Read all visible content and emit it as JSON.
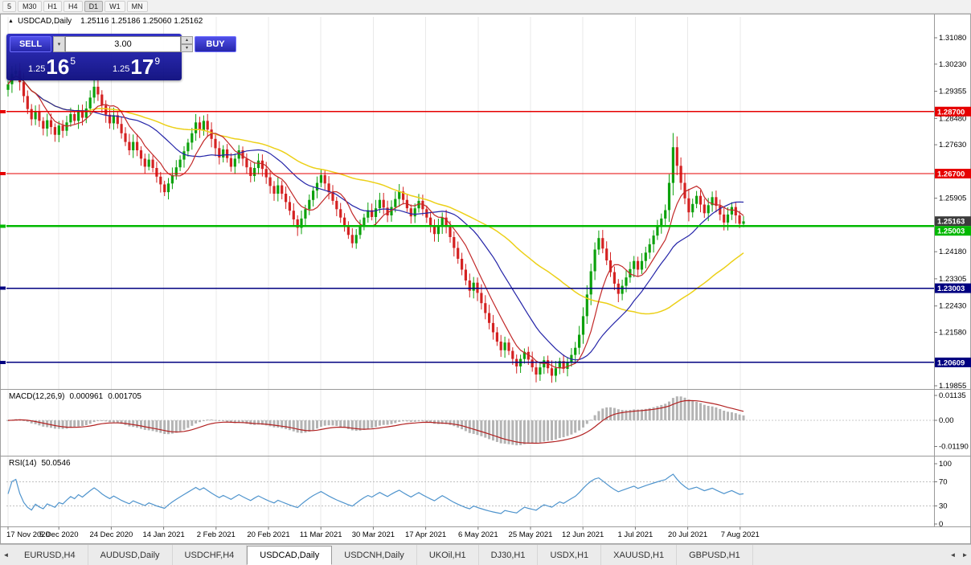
{
  "toolbar": {
    "timeframes": [
      "5",
      "M30",
      "H1",
      "H4",
      "D1",
      "W1",
      "MN"
    ],
    "active": "D1"
  },
  "chart": {
    "collapse_icon": "▲",
    "title_symbol": "USDCAD,Daily",
    "title_ohlc": "1.25116 1.25186 1.25060 1.25162"
  },
  "one_click": {
    "sell_label": "SELL",
    "buy_label": "BUY",
    "volume": "3.00",
    "dropdown_icon": "▾",
    "step_up_icon": "▴",
    "step_down_icon": "▾",
    "sell_price": {
      "prefix": "1.25",
      "big": "16",
      "sup": "5"
    },
    "buy_price": {
      "prefix": "1.25",
      "big": "17",
      "sup": "9"
    }
  },
  "tabs": {
    "items": [
      "EURUSD,H4",
      "AUDUSD,Daily",
      "USDCHF,H4",
      "USDCAD,Daily",
      "USDCNH,Daily",
      "UKOil,H1",
      "DJ30,H1",
      "USDX,H1",
      "XAUUSD,H1",
      "GBPUSD,H1"
    ],
    "active_index": 3,
    "left_arrow": "◄",
    "right_arrow": "►"
  },
  "chart_data": {
    "type": "candlestick",
    "symbol": "USDCAD",
    "timeframe": "Daily",
    "open": "1.25116",
    "high": "1.25186",
    "low": "1.25060",
    "close": "1.25162",
    "up_color": "#0ca10c",
    "down_color": "#d42222",
    "y_axis_ticks": [
      "1.31080",
      "1.30230",
      "1.29355",
      "1.28480",
      "1.27630",
      "1.25905",
      "1.24180",
      "1.23305",
      "1.22430",
      "1.21580",
      "1.19855"
    ],
    "x_axis_dates": [
      "17 Nov 2020",
      "5 Dec 2020",
      "24 Dec 2020",
      "14 Jan 2021",
      "2 Feb 2021",
      "20 Feb 2021",
      "11 Mar 2021",
      "30 Mar 2021",
      "17 Apr 2021",
      "6 May 2021",
      "25 May 2021",
      "12 Jun 2021",
      "1 Jul 2021",
      "20 Jul 2021",
      "7 Aug 2021"
    ],
    "levels": [
      {
        "label": "1.28700",
        "price": 1.287,
        "color": "#e60000",
        "width": 1.3
      },
      {
        "label": "1.26700",
        "price": 1.267,
        "color": "#e60000",
        "width": 1.3
      },
      {
        "label": "1.25163",
        "price": 1.25163,
        "color": "#3c3c3c",
        "width": 0
      },
      {
        "label": "1.25003",
        "price": 1.25003,
        "color": "#00b800",
        "width": 2.4
      },
      {
        "label": "1.23003",
        "price": 1.23003,
        "color": "#000080",
        "width": 1.6
      },
      {
        "label": "1.20609",
        "price": 1.20609,
        "color": "#000080",
        "width": 1.6
      }
    ],
    "indicators": {
      "ma_fast": {
        "period": 8,
        "color": "#c22828"
      },
      "ma_mid": {
        "period": 21,
        "color": "#2424a8"
      },
      "ma_slow": {
        "period": 50,
        "color": "#ecd018"
      },
      "macd": {
        "display_name": "MACD(12,26,9)",
        "value": "0.000961",
        "signal_value": "0.001705",
        "fast": 12,
        "slow": 26,
        "signal": 9,
        "axis_labels": [
          "0.01135",
          "0.00",
          "-0.01190"
        ],
        "histogram_color": "#b4b4b4",
        "signal_color": "#b22222"
      },
      "rsi": {
        "display_name": "RSI(14)",
        "value": "50.0546",
        "period": 14,
        "axis_labels": [
          100,
          70,
          30,
          0
        ],
        "levels": [
          70,
          30
        ],
        "color": "#4f94cd"
      }
    },
    "first_open": 1.294,
    "closes": [
      1.2958,
      1.2992,
      1.3002,
      1.2965,
      1.292,
      1.2878,
      1.2845,
      1.2872,
      1.284,
      1.2815,
      1.2842,
      1.282,
      1.2795,
      1.2825,
      1.2808,
      1.2835,
      1.2862,
      1.284,
      1.2875,
      1.285,
      1.288,
      1.2915,
      1.295,
      1.2925,
      1.289,
      1.286,
      1.2832,
      1.2858,
      1.283,
      1.28,
      1.2772,
      1.2745,
      1.2772,
      1.2745,
      1.2718,
      1.2692,
      1.2715,
      1.2688,
      1.266,
      1.2635,
      1.261,
      1.2638,
      1.2665,
      1.269,
      1.2715,
      1.2742,
      1.277,
      1.28,
      1.2835,
      1.281,
      1.284,
      1.2812,
      1.2782,
      1.2752,
      1.2722,
      1.2748,
      1.272,
      1.2692,
      1.2718,
      1.2745,
      1.2718,
      1.269,
      1.2662,
      1.2688,
      1.2712,
      1.2685,
      1.2658,
      1.263,
      1.2605,
      1.2632,
      1.2605,
      1.2578,
      1.255,
      1.2522,
      1.2495,
      1.2525,
      1.2555,
      1.2585,
      1.2615,
      1.264,
      1.2665,
      1.2638,
      1.261,
      1.2582,
      1.2555,
      1.2528,
      1.25,
      1.2472,
      1.2445,
      1.2472,
      1.25,
      1.2528,
      1.2552,
      1.253,
      1.2558,
      1.2585,
      1.256,
      1.2535,
      1.2562,
      1.2588,
      1.2612,
      1.2585,
      1.2558,
      1.2532,
      1.2558,
      1.2582,
      1.2555,
      1.2528,
      1.2502,
      1.2475,
      1.2502,
      1.2528,
      1.25,
      1.2465,
      1.243,
      1.2395,
      1.236,
      1.2325,
      1.2292,
      1.2318,
      1.2285,
      1.2252,
      1.222,
      1.2188,
      1.2158,
      1.2128,
      1.21,
      1.2125,
      1.2098,
      1.2072,
      1.2048,
      1.2072,
      1.2095,
      1.207,
      1.2045,
      1.2022,
      1.2045,
      1.2068,
      1.2042,
      1.2018,
      1.2042,
      1.2065,
      1.204,
      1.2062,
      1.2085,
      1.2108,
      1.215,
      1.221,
      1.228,
      1.2355,
      1.2425,
      1.2462,
      1.2428,
      1.239,
      1.2352,
      1.2315,
      1.2282,
      1.2308,
      1.2335,
      1.2362,
      1.2388,
      1.236,
      1.2388,
      1.2415,
      1.2442,
      1.247,
      1.2498,
      1.2525,
      1.2552,
      1.264,
      1.2755,
      1.2695,
      1.264,
      1.259,
      1.2545,
      1.2572,
      1.2598,
      1.257,
      1.2542,
      1.2568,
      1.2594,
      1.2566,
      1.2538,
      1.2512,
      1.2538,
      1.2562,
      1.2535,
      1.2508,
      1.2516
    ]
  }
}
